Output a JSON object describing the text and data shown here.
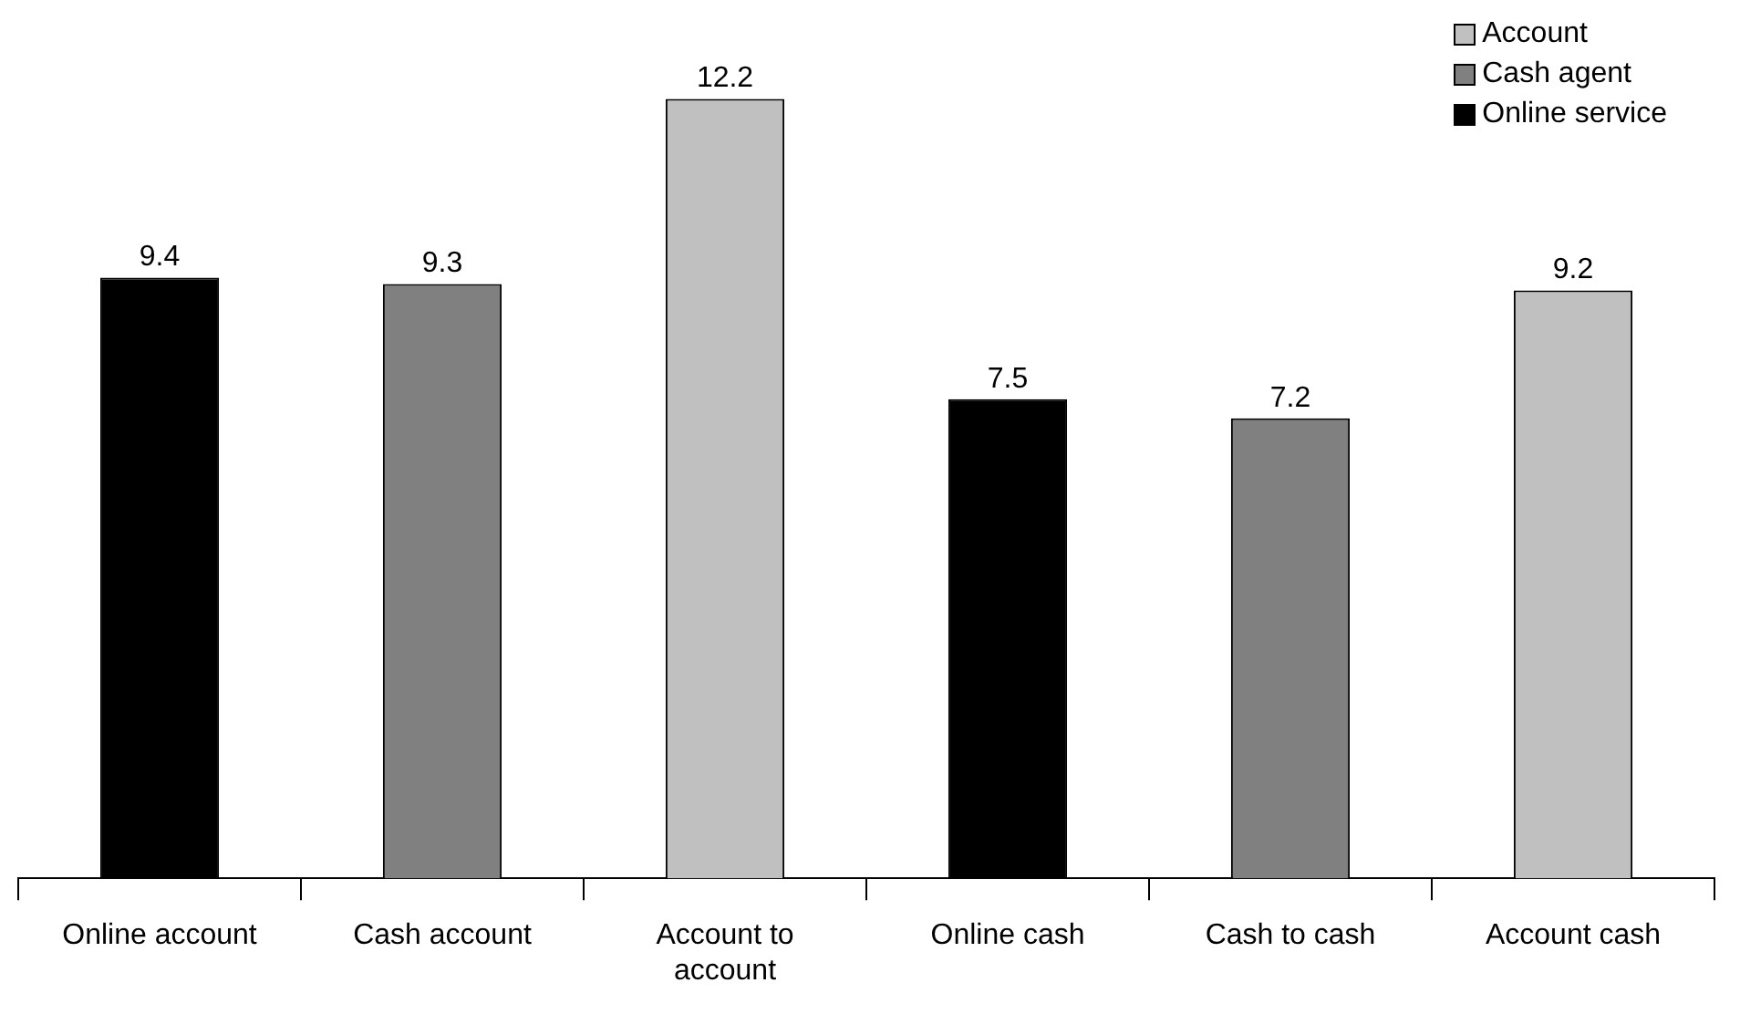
{
  "chart_data": {
    "type": "bar",
    "categories": [
      "Online account",
      "Cash account",
      "Account to account",
      "Online cash",
      "Cash to cash",
      "Account cash"
    ],
    "series": [
      {
        "name": "Account",
        "color": "#c0c0c0",
        "values": [
          null,
          null,
          12.2,
          null,
          null,
          9.2
        ]
      },
      {
        "name": "Cash agent",
        "color": "#808080",
        "values": [
          null,
          9.3,
          null,
          null,
          7.2,
          null
        ]
      },
      {
        "name": "Online service",
        "color": "#000000",
        "values": [
          9.4,
          null,
          null,
          7.5,
          null,
          null
        ]
      }
    ],
    "data_labels": true,
    "legend": "top right",
    "grid": false
  }
}
